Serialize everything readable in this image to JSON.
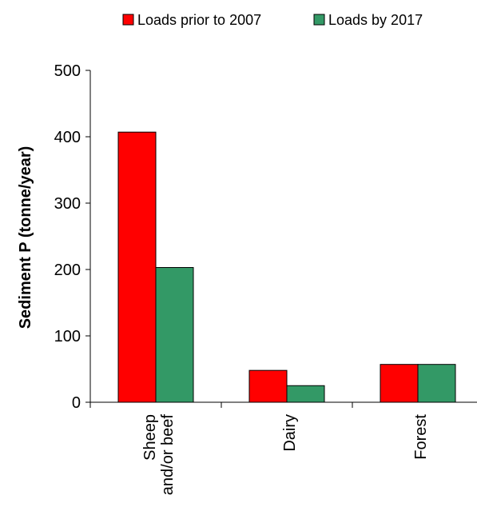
{
  "chart_data": {
    "type": "bar",
    "title": "",
    "xlabel": "",
    "ylabel": "Sediment P (tonne/year)",
    "ylim": [
      0,
      500
    ],
    "yticks": [
      0,
      100,
      200,
      300,
      400,
      500
    ],
    "categories": [
      [
        "Sheep",
        "and/or beef"
      ],
      [
        "Dairy"
      ],
      [
        "Forest"
      ]
    ],
    "series": [
      {
        "name": "Loads prior to 2007",
        "color": "#ff0000",
        "values": [
          407,
          48,
          57
        ]
      },
      {
        "name": "Loads by 2017",
        "color": "#339966",
        "values": [
          203,
          25,
          57
        ]
      }
    ],
    "grid": false,
    "legend": "top"
  }
}
